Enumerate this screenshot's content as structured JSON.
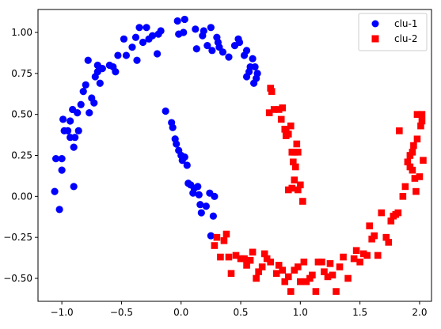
{
  "chart_data": {
    "type": "scatter",
    "title": "",
    "xlabel": "",
    "ylabel": "",
    "xlim": [
      -1.2,
      2.1
    ],
    "ylim": [
      -0.64,
      1.14
    ],
    "xticks": [
      -1.0,
      -0.5,
      0.0,
      0.5,
      1.0,
      1.5,
      2.0
    ],
    "yticks": [
      -0.5,
      -0.25,
      0.0,
      0.25,
      0.5,
      0.75,
      1.0
    ],
    "xtick_labels": [
      "−1.0",
      "−0.5",
      "0.0",
      "0.5",
      "1.0",
      "1.5",
      "2.0"
    ],
    "ytick_labels": [
      "−0.50",
      "−0.25",
      "0.00",
      "0.25",
      "0.50",
      "0.75",
      "1.00"
    ],
    "grid": false,
    "legend_position": "top-right",
    "series": [
      {
        "name": "clu-1",
        "marker": "circle",
        "color": "#0000ff",
        "points": [
          [
            -1.05,
            0.23
          ],
          [
            -1.06,
            0.03
          ],
          [
            -1.02,
            -0.08
          ],
          [
            -1.0,
            0.16
          ],
          [
            -1.0,
            0.23
          ],
          [
            -0.99,
            0.47
          ],
          [
            -0.98,
            0.4
          ],
          [
            -0.95,
            0.4
          ],
          [
            -0.93,
            0.36
          ],
          [
            -0.93,
            0.46
          ],
          [
            -0.91,
            0.53
          ],
          [
            -0.9,
            0.06
          ],
          [
            -0.9,
            0.3
          ],
          [
            -0.89,
            0.36
          ],
          [
            -0.87,
            0.51
          ],
          [
            -0.86,
            0.4
          ],
          [
            -0.84,
            0.56
          ],
          [
            -0.82,
            0.64
          ],
          [
            -0.8,
            0.68
          ],
          [
            -0.78,
            0.83
          ],
          [
            -0.77,
            0.51
          ],
          [
            -0.75,
            0.6
          ],
          [
            -0.73,
            0.57
          ],
          [
            -0.72,
            0.73
          ],
          [
            -0.7,
            0.8
          ],
          [
            -0.7,
            0.76
          ],
          [
            -0.68,
            0.69
          ],
          [
            -0.66,
            0.78
          ],
          [
            -0.6,
            0.8
          ],
          [
            -0.57,
            0.79
          ],
          [
            -0.55,
            0.76
          ],
          [
            -0.53,
            0.86
          ],
          [
            -0.48,
            0.96
          ],
          [
            -0.46,
            0.86
          ],
          [
            -0.41,
            0.91
          ],
          [
            -0.38,
            0.97
          ],
          [
            -0.37,
            0.83
          ],
          [
            -0.35,
            1.03
          ],
          [
            -0.32,
            0.94
          ],
          [
            -0.29,
            1.03
          ],
          [
            -0.27,
            0.96
          ],
          [
            -0.24,
            0.98
          ],
          [
            -0.2,
            0.87
          ],
          [
            -0.19,
            0.99
          ],
          [
            -0.17,
            1.01
          ],
          [
            -0.13,
            0.52
          ],
          [
            -0.08,
            0.45
          ],
          [
            -0.07,
            0.42
          ],
          [
            -0.05,
            0.35
          ],
          [
            -0.04,
            0.32
          ],
          [
            -0.03,
            1.07
          ],
          [
            -0.02,
            0.99
          ],
          [
            -0.02,
            0.28
          ],
          [
            0.0,
            0.25
          ],
          [
            0.01,
            0.22
          ],
          [
            0.02,
            1.0
          ],
          [
            0.03,
            0.24
          ],
          [
            0.03,
            1.08
          ],
          [
            0.05,
            0.19
          ],
          [
            0.06,
            0.08
          ],
          [
            0.08,
            0.07
          ],
          [
            0.1,
            0.02
          ],
          [
            0.11,
            0.05
          ],
          [
            0.12,
            1.02
          ],
          [
            0.13,
            0.9
          ],
          [
            0.14,
            0.06
          ],
          [
            0.15,
            0.01
          ],
          [
            0.16,
            -0.05
          ],
          [
            0.17,
            -0.1
          ],
          [
            0.18,
            0.98
          ],
          [
            0.19,
            1.01
          ],
          [
            0.21,
            -0.06
          ],
          [
            0.22,
            0.92
          ],
          [
            0.24,
            0.02
          ],
          [
            0.25,
            -0.24
          ],
          [
            0.25,
            1.03
          ],
          [
            0.26,
            0.89
          ],
          [
            0.27,
            -0.12
          ],
          [
            0.28,
            0.0
          ],
          [
            0.3,
            0.97
          ],
          [
            0.31,
            0.94
          ],
          [
            0.32,
            0.91
          ],
          [
            0.35,
            0.88
          ],
          [
            0.4,
            0.85
          ],
          [
            0.45,
            0.92
          ],
          [
            0.48,
            0.96
          ],
          [
            0.49,
            0.94
          ],
          [
            0.53,
            0.86
          ],
          [
            0.55,
            0.89
          ],
          [
            0.55,
            0.73
          ],
          [
            0.57,
            0.76
          ],
          [
            0.58,
            0.79
          ],
          [
            0.6,
            0.84
          ],
          [
            0.61,
            0.69
          ],
          [
            0.62,
            0.79
          ],
          [
            0.63,
            0.72
          ],
          [
            0.64,
            0.75
          ]
        ]
      },
      {
        "name": "clu-2",
        "marker": "square",
        "color": "#ff0000",
        "points": [
          [
            0.74,
            0.51
          ],
          [
            0.75,
            0.66
          ],
          [
            0.76,
            0.64
          ],
          [
            0.78,
            0.53
          ],
          [
            0.82,
            0.53
          ],
          [
            0.84,
            0.47
          ],
          [
            0.85,
            0.54
          ],
          [
            0.87,
            0.41
          ],
          [
            0.88,
            0.37
          ],
          [
            0.88,
            0.4
          ],
          [
            0.9,
            0.38
          ],
          [
            0.9,
            0.04
          ],
          [
            0.92,
            0.43
          ],
          [
            0.93,
            0.27
          ],
          [
            0.93,
            0.05
          ],
          [
            0.94,
            0.21
          ],
          [
            0.95,
            0.1
          ],
          [
            0.95,
            0.27
          ],
          [
            0.96,
            0.18
          ],
          [
            0.97,
            0.32
          ],
          [
            0.98,
            0.27
          ],
          [
            0.98,
            0.04
          ],
          [
            1.0,
            0.07
          ],
          [
            1.02,
            -0.03
          ],
          [
            0.28,
            -0.3
          ],
          [
            0.3,
            -0.25
          ],
          [
            0.33,
            -0.37
          ],
          [
            0.36,
            -0.27
          ],
          [
            0.38,
            -0.23
          ],
          [
            0.4,
            -0.37
          ],
          [
            0.42,
            -0.47
          ],
          [
            0.46,
            -0.36
          ],
          [
            0.5,
            -0.38
          ],
          [
            0.53,
            -0.38
          ],
          [
            0.55,
            -0.42
          ],
          [
            0.58,
            -0.39
          ],
          [
            0.6,
            -0.34
          ],
          [
            0.63,
            -0.5
          ],
          [
            0.65,
            -0.46
          ],
          [
            0.68,
            -0.43
          ],
          [
            0.7,
            -0.35
          ],
          [
            0.72,
            -0.38
          ],
          [
            0.75,
            -0.4
          ],
          [
            0.8,
            -0.47
          ],
          [
            0.82,
            -0.42
          ],
          [
            0.85,
            -0.45
          ],
          [
            0.87,
            -0.52
          ],
          [
            0.9,
            -0.49
          ],
          [
            0.92,
            -0.58
          ],
          [
            0.95,
            -0.45
          ],
          [
            0.98,
            -0.43
          ],
          [
            1.0,
            -0.52
          ],
          [
            1.03,
            -0.4
          ],
          [
            1.05,
            -0.52
          ],
          [
            1.08,
            -0.5
          ],
          [
            1.1,
            -0.48
          ],
          [
            1.13,
            -0.58
          ],
          [
            1.15,
            -0.4
          ],
          [
            1.18,
            -0.4
          ],
          [
            1.2,
            -0.46
          ],
          [
            1.23,
            -0.49
          ],
          [
            1.25,
            -0.41
          ],
          [
            1.27,
            -0.48
          ],
          [
            1.3,
            -0.58
          ],
          [
            1.33,
            -0.43
          ],
          [
            1.36,
            -0.37
          ],
          [
            1.4,
            -0.5
          ],
          [
            1.45,
            -0.38
          ],
          [
            1.47,
            -0.33
          ],
          [
            1.5,
            -0.4
          ],
          [
            1.53,
            -0.35
          ],
          [
            1.56,
            -0.36
          ],
          [
            1.58,
            -0.18
          ],
          [
            1.6,
            -0.26
          ],
          [
            1.62,
            -0.24
          ],
          [
            1.65,
            -0.36
          ],
          [
            1.68,
            -0.1
          ],
          [
            1.72,
            -0.25
          ],
          [
            1.74,
            -0.28
          ],
          [
            1.76,
            -0.15
          ],
          [
            1.78,
            -0.12
          ],
          [
            1.8,
            -0.11
          ],
          [
            1.82,
            -0.1
          ],
          [
            1.83,
            0.4
          ],
          [
            1.86,
            0.0
          ],
          [
            1.88,
            0.06
          ],
          [
            1.9,
            0.21
          ],
          [
            1.92,
            0.18
          ],
          [
            1.92,
            0.25
          ],
          [
            1.94,
            0.27
          ],
          [
            1.94,
            0.16
          ],
          [
            1.95,
            0.31
          ],
          [
            1.96,
            0.11
          ],
          [
            1.97,
            0.03
          ],
          [
            1.98,
            0.35
          ],
          [
            1.98,
            0.5
          ],
          [
            2.0,
            0.12
          ],
          [
            2.01,
            0.43
          ],
          [
            2.02,
            0.46
          ],
          [
            2.02,
            0.5
          ],
          [
            2.03,
            0.22
          ]
        ]
      }
    ]
  }
}
